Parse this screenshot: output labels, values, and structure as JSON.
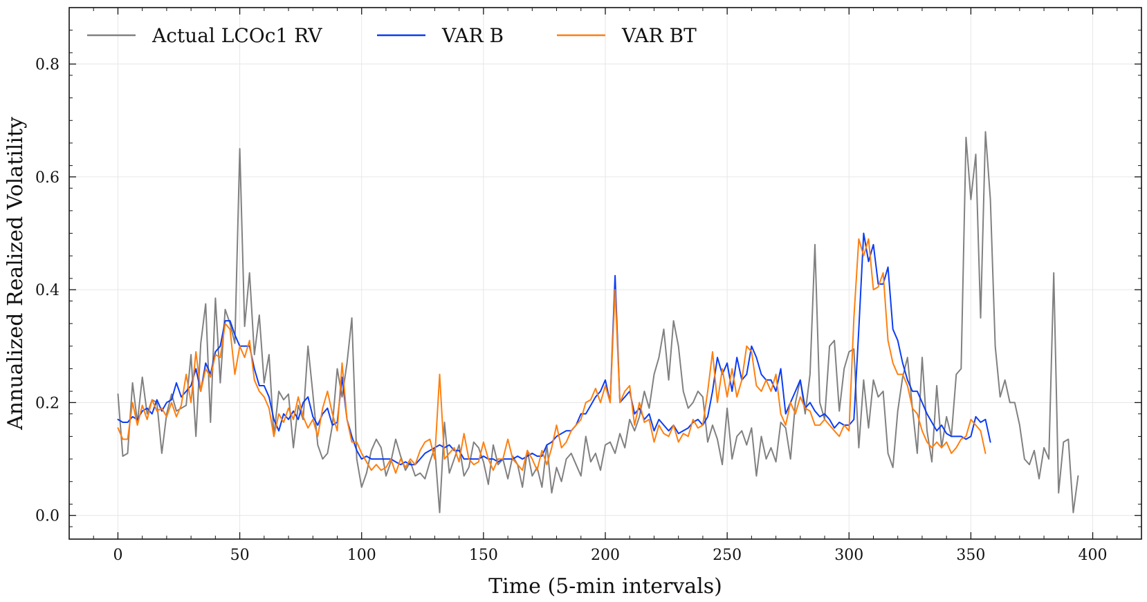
{
  "chart_data": {
    "type": "line",
    "title": "",
    "xlabel": "Time (5-min intervals)",
    "ylabel": "Annualized Realized Volatility",
    "xlim": [
      -20,
      420
    ],
    "ylim": [
      -0.042,
      0.9
    ],
    "xticks": [
      0,
      50,
      100,
      150,
      200,
      250,
      300,
      350,
      400
    ],
    "xtick_labels": [
      "0",
      "50",
      "100",
      "150",
      "200",
      "250",
      "300",
      "350",
      "400"
    ],
    "yticks": [
      0.0,
      0.2,
      0.4,
      0.6,
      0.8
    ],
    "ytick_labels": [
      "0.0",
      "0.2",
      "0.4",
      "0.6",
      "0.8"
    ],
    "grid": true,
    "legend_position": "top-left",
    "x_start": 0,
    "x_step": 2,
    "series": [
      {
        "name": "Actual LCOc1 RV",
        "color": "#808080",
        "values": [
          0.215,
          0.105,
          0.11,
          0.235,
          0.165,
          0.245,
          0.18,
          0.205,
          0.2,
          0.11,
          0.18,
          0.215,
          0.185,
          0.19,
          0.195,
          0.285,
          0.14,
          0.305,
          0.375,
          0.165,
          0.385,
          0.235,
          0.365,
          0.34,
          0.305,
          0.65,
          0.335,
          0.43,
          0.285,
          0.355,
          0.235,
          0.285,
          0.14,
          0.22,
          0.205,
          0.215,
          0.12,
          0.195,
          0.17,
          0.3,
          0.215,
          0.125,
          0.1,
          0.11,
          0.16,
          0.26,
          0.21,
          0.27,
          0.35,
          0.1,
          0.05,
          0.075,
          0.115,
          0.135,
          0.12,
          0.07,
          0.095,
          0.135,
          0.105,
          0.08,
          0.095,
          0.07,
          0.075,
          0.065,
          0.095,
          0.12,
          0.005,
          0.165,
          0.075,
          0.1,
          0.125,
          0.07,
          0.085,
          0.13,
          0.12,
          0.095,
          0.055,
          0.125,
          0.09,
          0.1,
          0.065,
          0.105,
          0.09,
          0.05,
          0.115,
          0.07,
          0.085,
          0.05,
          0.125,
          0.04,
          0.085,
          0.06,
          0.1,
          0.11,
          0.09,
          0.07,
          0.14,
          0.095,
          0.11,
          0.08,
          0.125,
          0.13,
          0.11,
          0.145,
          0.12,
          0.17,
          0.15,
          0.175,
          0.22,
          0.19,
          0.25,
          0.28,
          0.33,
          0.24,
          0.345,
          0.3,
          0.22,
          0.19,
          0.2,
          0.22,
          0.21,
          0.13,
          0.16,
          0.135,
          0.09,
          0.19,
          0.1,
          0.14,
          0.15,
          0.125,
          0.155,
          0.07,
          0.14,
          0.1,
          0.12,
          0.095,
          0.165,
          0.155,
          0.1,
          0.2,
          0.24,
          0.18,
          0.25,
          0.48,
          0.2,
          0.17,
          0.3,
          0.31,
          0.185,
          0.26,
          0.29,
          0.295,
          0.12,
          0.24,
          0.155,
          0.24,
          0.21,
          0.22,
          0.11,
          0.085,
          0.185,
          0.245,
          0.28,
          0.19,
          0.11,
          0.28,
          0.15,
          0.095,
          0.23,
          0.12,
          0.175,
          0.14,
          0.25,
          0.26,
          0.67,
          0.56,
          0.64,
          0.35,
          0.68,
          0.56,
          0.3,
          0.21,
          0.24,
          0.2,
          0.2,
          0.16,
          0.1,
          0.09,
          0.115,
          0.065,
          0.12,
          0.1,
          0.43,
          0.04,
          0.13,
          0.135,
          0.005,
          0.07
        ]
      },
      {
        "name": "VAR B",
        "color": "#0a3cf5",
        "values": [
          0.17,
          0.165,
          0.165,
          0.175,
          0.17,
          0.185,
          0.19,
          0.18,
          0.205,
          0.185,
          0.2,
          0.205,
          0.235,
          0.21,
          0.22,
          0.23,
          0.26,
          0.22,
          0.27,
          0.25,
          0.29,
          0.3,
          0.345,
          0.345,
          0.32,
          0.3,
          0.3,
          0.3,
          0.26,
          0.23,
          0.23,
          0.21,
          0.17,
          0.15,
          0.18,
          0.17,
          0.185,
          0.17,
          0.2,
          0.21,
          0.175,
          0.16,
          0.18,
          0.19,
          0.16,
          0.165,
          0.245,
          0.17,
          0.14,
          0.115,
          0.1,
          0.105,
          0.1,
          0.1,
          0.1,
          0.1,
          0.1,
          0.095,
          0.09,
          0.095,
          0.09,
          0.09,
          0.1,
          0.11,
          0.115,
          0.12,
          0.125,
          0.12,
          0.125,
          0.115,
          0.115,
          0.1,
          0.1,
          0.1,
          0.1,
          0.105,
          0.1,
          0.1,
          0.095,
          0.1,
          0.1,
          0.1,
          0.105,
          0.1,
          0.105,
          0.11,
          0.105,
          0.105,
          0.125,
          0.13,
          0.14,
          0.145,
          0.15,
          0.15,
          0.16,
          0.18,
          0.18,
          0.195,
          0.21,
          0.22,
          0.24,
          0.2,
          0.425,
          0.2,
          0.21,
          0.22,
          0.18,
          0.19,
          0.17,
          0.18,
          0.15,
          0.17,
          0.16,
          0.15,
          0.16,
          0.145,
          0.15,
          0.155,
          0.165,
          0.17,
          0.16,
          0.175,
          0.22,
          0.28,
          0.25,
          0.27,
          0.22,
          0.28,
          0.24,
          0.25,
          0.3,
          0.28,
          0.25,
          0.24,
          0.24,
          0.22,
          0.26,
          0.18,
          0.2,
          0.22,
          0.24,
          0.19,
          0.2,
          0.185,
          0.175,
          0.18,
          0.17,
          0.155,
          0.165,
          0.16,
          0.16,
          0.17,
          0.33,
          0.5,
          0.45,
          0.48,
          0.41,
          0.41,
          0.44,
          0.33,
          0.31,
          0.27,
          0.24,
          0.22,
          0.22,
          0.2,
          0.18,
          0.165,
          0.15,
          0.16,
          0.145,
          0.14,
          0.14,
          0.14,
          0.135,
          0.14,
          0.175,
          0.165,
          0.17,
          0.13
        ]
      },
      {
        "name": "VAR BT",
        "color": "#ff7f0e",
        "values": [
          0.155,
          0.135,
          0.135,
          0.2,
          0.16,
          0.195,
          0.17,
          0.205,
          0.185,
          0.19,
          0.175,
          0.2,
          0.175,
          0.195,
          0.25,
          0.2,
          0.29,
          0.22,
          0.26,
          0.245,
          0.285,
          0.28,
          0.34,
          0.33,
          0.25,
          0.3,
          0.28,
          0.31,
          0.24,
          0.22,
          0.21,
          0.19,
          0.14,
          0.18,
          0.165,
          0.19,
          0.17,
          0.21,
          0.175,
          0.155,
          0.17,
          0.14,
          0.19,
          0.22,
          0.18,
          0.15,
          0.27,
          0.17,
          0.13,
          0.13,
          0.11,
          0.095,
          0.08,
          0.09,
          0.08,
          0.085,
          0.1,
          0.075,
          0.1,
          0.085,
          0.1,
          0.09,
          0.115,
          0.13,
          0.135,
          0.1,
          0.25,
          0.1,
          0.11,
          0.12,
          0.095,
          0.145,
          0.1,
          0.09,
          0.095,
          0.13,
          0.1,
          0.08,
          0.1,
          0.1,
          0.135,
          0.1,
          0.09,
          0.08,
          0.115,
          0.1,
          0.08,
          0.115,
          0.09,
          0.12,
          0.16,
          0.12,
          0.13,
          0.15,
          0.16,
          0.17,
          0.2,
          0.205,
          0.225,
          0.2,
          0.23,
          0.2,
          0.4,
          0.2,
          0.22,
          0.23,
          0.16,
          0.2,
          0.165,
          0.17,
          0.13,
          0.16,
          0.145,
          0.14,
          0.16,
          0.13,
          0.145,
          0.14,
          0.17,
          0.155,
          0.16,
          0.22,
          0.29,
          0.2,
          0.26,
          0.21,
          0.26,
          0.21,
          0.24,
          0.3,
          0.29,
          0.23,
          0.22,
          0.24,
          0.22,
          0.25,
          0.18,
          0.16,
          0.2,
          0.18,
          0.21,
          0.19,
          0.185,
          0.16,
          0.16,
          0.17,
          0.16,
          0.15,
          0.14,
          0.16,
          0.15,
          0.35,
          0.49,
          0.46,
          0.49,
          0.4,
          0.405,
          0.43,
          0.31,
          0.27,
          0.25,
          0.25,
          0.23,
          0.19,
          0.18,
          0.15,
          0.13,
          0.12,
          0.13,
          0.12,
          0.13,
          0.11,
          0.12,
          0.135,
          0.14,
          0.17,
          0.16,
          0.15,
          0.11
        ]
      }
    ]
  }
}
